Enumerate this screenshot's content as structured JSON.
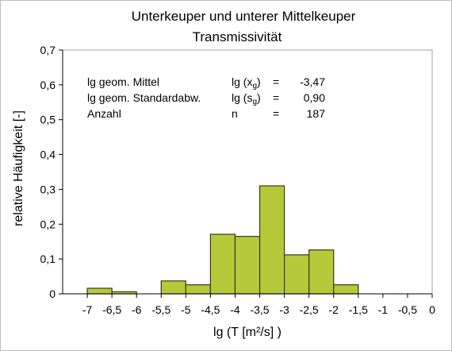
{
  "chart_data": {
    "type": "bar",
    "title": "Unterkeuper und unterer Mittelkeuper",
    "subtitle": "Transmissivität",
    "xlabel": "lg (T [m²/s] )",
    "ylabel": "relative Häufigkeit [-]",
    "xlim": [
      -7.5,
      0
    ],
    "ylim": [
      0,
      0.7
    ],
    "x_ticks": [
      "-7",
      "-6,5",
      "-6",
      "-5,5",
      "-5",
      "-4,5",
      "-4",
      "-3,5",
      "-3",
      "-2,5",
      "-2",
      "-1,5",
      "-1",
      "-0,5",
      "0"
    ],
    "y_ticks": [
      "0",
      "0,1",
      "0,2",
      "0,3",
      "0,4",
      "0,5",
      "0,6",
      "0,7"
    ],
    "bar_color": "#b5c93a",
    "bins": [
      {
        "from": -7.0,
        "to": -6.5,
        "value": 0.016
      },
      {
        "from": -6.5,
        "to": -6.0,
        "value": 0.006
      },
      {
        "from": -5.5,
        "to": -5.0,
        "value": 0.037
      },
      {
        "from": -5.0,
        "to": -4.5,
        "value": 0.026
      },
      {
        "from": -4.5,
        "to": -4.0,
        "value": 0.171
      },
      {
        "from": -4.0,
        "to": -3.5,
        "value": 0.165
      },
      {
        "from": -3.5,
        "to": -3.0,
        "value": 0.31
      },
      {
        "from": -3.0,
        "to": -2.5,
        "value": 0.112
      },
      {
        "from": -2.5,
        "to": -2.0,
        "value": 0.126
      },
      {
        "from": -2.0,
        "to": -1.5,
        "value": 0.026
      }
    ],
    "stats": [
      {
        "label": "lg geom. Mittel",
        "symbol": "lg (x",
        "sub": "g",
        "close": ")",
        "eq": "=",
        "value": "-3,47"
      },
      {
        "label": "lg geom. Standardabw.",
        "symbol": "lg (s",
        "sub": "g",
        "close": ")",
        "eq": "=",
        "value": "0,90"
      },
      {
        "label": "Anzahl",
        "symbol": "n",
        "sub": "",
        "close": "",
        "eq": "=",
        "value": "187"
      }
    ]
  }
}
